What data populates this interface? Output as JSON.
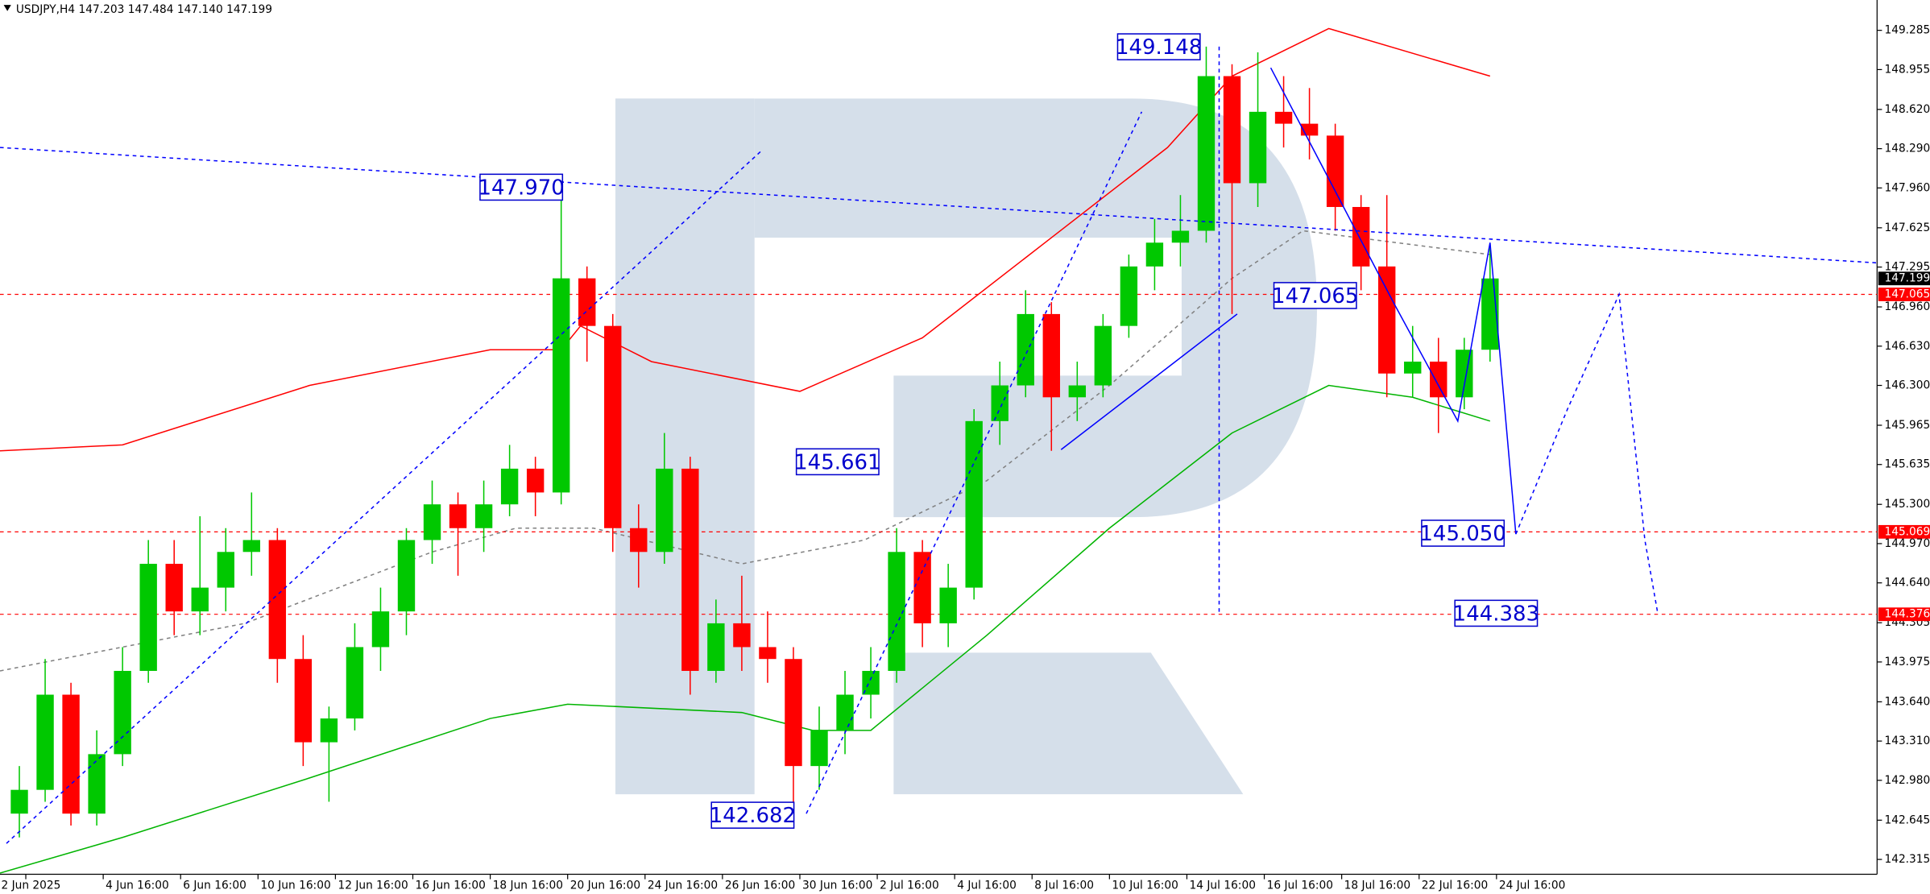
{
  "chart_data": {
    "type": "candlestick",
    "title": "USDJPY,H4  147.203 147.484 147.140 147.199",
    "ylim": [
      142.19,
      149.54
    ],
    "yticks": [
      149.285,
      148.955,
      {
        "value": 148.62,
        "label": "148.620"
      },
      {
        "value": 148.29,
        "label": "148.290"
      },
      {
        "value": 147.96,
        "label": "147.960"
      },
      147.625,
      147.295,
      {
        "value": 146.96,
        "label": "146.960"
      },
      {
        "value": 146.63,
        "label": "146.630"
      },
      {
        "value": 146.3,
        "label": "146.300"
      },
      145.965,
      145.635,
      {
        "value": 145.3,
        "label": "145.300"
      },
      {
        "value": 144.97,
        "label": "144.970"
      },
      {
        "value": 144.64,
        "label": "144.640"
      },
      144.305,
      143.975,
      {
        "value": 143.64,
        "label": "143.640"
      },
      {
        "value": 143.31,
        "label": "143.310"
      },
      {
        "value": 142.98,
        "label": "142.980"
      },
      142.645,
      142.315
    ],
    "xlim": [
      0,
      291
    ],
    "xlabels": [
      "2 Jun 2025",
      "4 Jun 16:00",
      "6 Jun 16:00",
      "10 Jun 16:00",
      "12 Jun 16:00",
      "16 Jun 16:00",
      "18 Jun 16:00",
      "20 Jun 16:00",
      "24 Jun 16:00",
      "26 Jun 16:00",
      "30 Jun 16:00",
      "2 Jul 16:00",
      "4 Jul 16:00",
      "8 Jul 16:00",
      "10 Jul 16:00",
      "14 Jul 16:00",
      "16 Jul 16:00",
      "18 Jul 16:00",
      "22 Jul 16:00",
      "24 Jul 16:00"
    ],
    "up_color": "#00c800",
    "down_color": "#ff0000",
    "candles": [
      [
        142.7,
        143.1,
        142.5,
        142.9
      ],
      [
        142.9,
        144.0,
        142.8,
        143.7
      ],
      [
        143.7,
        143.8,
        142.6,
        142.7
      ],
      [
        142.7,
        143.4,
        142.6,
        143.2
      ],
      [
        143.2,
        144.1,
        143.1,
        143.9
      ],
      [
        143.9,
        145.0,
        143.8,
        144.8
      ],
      [
        144.8,
        145.0,
        144.2,
        144.4
      ],
      [
        144.4,
        145.2,
        144.2,
        144.6
      ],
      [
        144.6,
        145.1,
        144.4,
        144.9
      ],
      [
        144.9,
        145.4,
        144.7,
        145.0
      ],
      [
        145.0,
        145.1,
        143.8,
        144.0
      ],
      [
        144.0,
        144.2,
        143.1,
        143.3
      ],
      [
        143.3,
        143.6,
        142.8,
        143.5
      ],
      [
        143.5,
        144.3,
        143.4,
        144.1
      ],
      [
        144.1,
        144.6,
        143.9,
        144.4
      ],
      [
        144.4,
        145.1,
        144.2,
        145.0
      ],
      [
        145.0,
        145.5,
        144.8,
        145.3
      ],
      [
        145.3,
        145.4,
        144.7,
        145.1
      ],
      [
        145.1,
        145.5,
        144.9,
        145.3
      ],
      [
        145.3,
        145.8,
        145.2,
        145.6
      ],
      [
        145.6,
        145.7,
        145.2,
        145.4
      ],
      [
        145.4,
        147.97,
        145.3,
        147.2
      ],
      [
        147.2,
        147.3,
        146.5,
        146.8
      ],
      [
        146.8,
        146.9,
        144.9,
        145.1
      ],
      [
        145.1,
        145.3,
        144.6,
        144.9
      ],
      [
        144.9,
        145.9,
        144.8,
        145.6
      ],
      [
        145.6,
        145.7,
        143.7,
        143.9
      ],
      [
        143.9,
        144.5,
        143.8,
        144.3
      ],
      [
        144.3,
        144.7,
        143.9,
        144.1
      ],
      [
        144.1,
        144.4,
        143.8,
        144.0
      ],
      [
        144.0,
        144.1,
        142.682,
        143.1
      ],
      [
        143.1,
        143.6,
        142.9,
        143.4
      ],
      [
        143.4,
        143.9,
        143.2,
        143.7
      ],
      [
        143.7,
        144.1,
        143.5,
        143.9
      ],
      [
        143.9,
        145.1,
        143.8,
        144.9
      ],
      [
        144.9,
        145.0,
        144.1,
        144.3
      ],
      [
        144.3,
        144.8,
        144.1,
        144.6
      ],
      [
        144.6,
        146.1,
        144.5,
        146.0
      ],
      [
        146.0,
        146.5,
        145.8,
        146.3
      ],
      [
        146.3,
        147.1,
        146.2,
        146.9
      ],
      [
        146.9,
        147.0,
        145.75,
        146.2
      ],
      [
        146.2,
        146.5,
        146.0,
        146.3
      ],
      [
        146.3,
        146.9,
        146.2,
        146.8
      ],
      [
        146.8,
        147.4,
        146.7,
        147.3
      ],
      [
        147.3,
        147.7,
        147.1,
        147.5
      ],
      [
        147.5,
        147.9,
        147.3,
        147.6
      ],
      [
        147.6,
        149.148,
        147.5,
        148.9
      ],
      [
        148.9,
        149.0,
        146.9,
        148.0
      ],
      [
        148.0,
        149.1,
        147.8,
        148.6
      ],
      [
        148.6,
        148.9,
        148.3,
        148.5
      ],
      [
        148.5,
        148.8,
        148.2,
        148.4
      ],
      [
        148.4,
        148.5,
        147.6,
        147.8
      ],
      [
        147.8,
        147.9,
        147.1,
        147.3
      ],
      [
        147.3,
        147.9,
        146.2,
        146.4
      ],
      [
        146.4,
        146.8,
        146.2,
        146.5
      ],
      [
        146.5,
        146.7,
        145.9,
        146.2
      ],
      [
        146.2,
        146.7,
        146.1,
        146.6
      ],
      [
        146.6,
        147.484,
        146.5,
        147.199
      ]
    ],
    "ma": [
      {
        "color": "#ff0000",
        "dash": false,
        "x": [
          0,
          19,
          48,
          76,
          87,
          90,
          101,
          124,
          143,
          162,
          181,
          191,
          206,
          231
        ],
        "values": [
          145.75,
          145.8,
          146.3,
          146.6,
          146.6,
          146.8,
          146.5,
          146.25,
          146.7,
          147.5,
          148.3,
          148.9,
          149.3,
          148.9
        ]
      },
      {
        "color": "#00b400",
        "dash": false,
        "x": [
          0,
          19,
          48,
          76,
          88,
          115,
          126,
          135,
          153,
          172,
          191,
          206,
          219,
          231
        ],
        "values": [
          142.2,
          142.5,
          143.0,
          143.5,
          143.62,
          143.55,
          143.4,
          143.4,
          144.2,
          145.1,
          145.9,
          146.3,
          146.2,
          146.0
        ]
      },
      {
        "color": "#808080",
        "dash": true,
        "x": [
          0,
          38,
          67,
          80,
          92,
          115,
          134,
          153,
          172,
          191,
          202,
          231
        ],
        "values": [
          143.9,
          144.3,
          144.9,
          145.1,
          145.1,
          144.8,
          145.0,
          145.5,
          146.3,
          147.2,
          147.6,
          147.4
        ]
      }
    ],
    "trendlines": [
      {
        "color": "#0000ff",
        "dash": true,
        "x": [
          0,
          291
        ],
        "values": [
          148.3,
          147.33
        ]
      },
      {
        "color": "#0000ff",
        "dash": true,
        "x": [
          1,
          118
        ],
        "values": [
          142.45,
          148.27
        ]
      },
      {
        "color": "#0000ff",
        "dash": true,
        "x": [
          125,
          177
        ],
        "values": [
          142.7,
          148.6
        ]
      },
      {
        "color": "#0000ff",
        "dash": true,
        "x": [
          189,
          189
        ],
        "values": [
          149.148,
          144.376
        ]
      },
      {
        "color": "#0000ff",
        "dash": false,
        "x": [
          164.5,
          191.8
        ],
        "values": [
          145.76,
          146.9
        ]
      },
      {
        "color": "#0000ff",
        "dash": false,
        "x": [
          197,
          216,
          226,
          231,
          235
        ],
        "values": [
          148.97,
          147.0,
          146.0,
          147.5,
          145.05
        ]
      },
      {
        "color": "#0000ff",
        "dash": true,
        "x": [
          235,
          243,
          251,
          255,
          257
        ],
        "values": [
          145.05,
          146.1,
          147.065,
          145.0,
          144.383
        ]
      }
    ],
    "levels": [
      147.065,
      145.069,
      144.376
    ],
    "level_color": "#ff0000",
    "last_price": 147.199,
    "annotations": [
      "149.148",
      "147.970",
      "147.065",
      "145.661",
      "142.682",
      "145.050",
      "144.383"
    ]
  }
}
